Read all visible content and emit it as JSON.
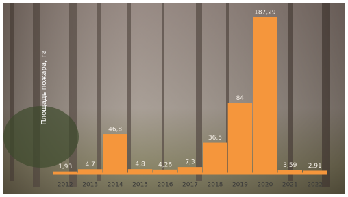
{
  "chart_data": {
    "type": "bar",
    "y_label": "Площадь пожара, га",
    "categories": [
      "2012",
      "2013",
      "2014",
      "2015",
      "2016",
      "2017",
      "2018",
      "2019",
      "2020",
      "2021",
      "2022"
    ],
    "values": [
      1.93,
      4.7,
      46.8,
      4.8,
      4.26,
      7.3,
      36.5,
      84,
      187.29,
      3.59,
      2.91
    ],
    "value_labels": [
      "1,93",
      "4,7",
      "46,8",
      "4,8",
      "4,26",
      "7,3",
      "36,5",
      "84",
      "187,29",
      "3,59",
      "2,91"
    ],
    "color": "#f5963c"
  }
}
